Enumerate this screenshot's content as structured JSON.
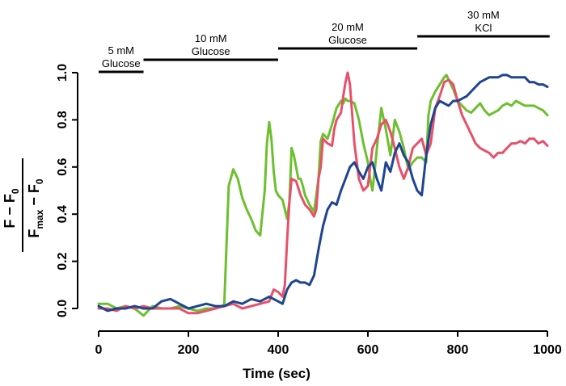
{
  "chart_data": {
    "type": "line",
    "xlabel": "Time (sec)",
    "ylabel": {
      "numerator": "F − F",
      "numerator_sub": "0",
      "denominator": "F",
      "denominator_sub": "max",
      "denominator_rest": " − F",
      "denominator_sub2": "0"
    },
    "xlim": [
      0,
      1000
    ],
    "ylim": [
      0,
      1.0
    ],
    "x_ticks": [
      "0",
      "200",
      "400",
      "600",
      "800",
      "1000"
    ],
    "y_ticks": [
      "0.0",
      "0.2",
      "0.4",
      "0.6",
      "0.8",
      "1.0"
    ],
    "grid": false,
    "conditions": [
      {
        "label_lines": [
          "5 mM",
          "Glucose"
        ],
        "start": 0,
        "end": 100
      },
      {
        "label_lines": [
          "10 mM",
          "Glucose"
        ],
        "start": 100,
        "end": 400
      },
      {
        "label_lines": [
          "20 mM",
          "Glucose"
        ],
        "start": 400,
        "end": 710
      },
      {
        "label_lines": [
          "30 mM",
          "KCl"
        ],
        "start": 710,
        "end": 1005
      }
    ],
    "series": [
      {
        "name": "green",
        "color": "#6cc02e",
        "x": [
          0,
          20,
          40,
          60,
          80,
          100,
          120,
          140,
          160,
          180,
          200,
          220,
          240,
          260,
          275,
          280,
          290,
          300,
          310,
          320,
          330,
          340,
          350,
          360,
          370,
          375,
          380,
          385,
          390,
          395,
          400,
          410,
          420,
          425,
          430,
          435,
          440,
          445,
          450,
          455,
          460,
          470,
          480,
          490,
          495,
          500,
          510,
          520,
          530,
          540,
          545,
          550,
          555,
          560,
          570,
          580,
          590,
          600,
          605,
          610,
          615,
          620,
          630,
          640,
          650,
          655,
          660,
          670,
          680,
          690,
          700,
          710,
          720,
          730,
          735,
          740,
          750,
          760,
          770,
          775,
          780,
          790,
          800,
          810,
          820,
          830,
          840,
          850,
          860,
          870,
          880,
          890,
          900,
          910,
          920,
          930,
          940,
          950,
          960,
          970,
          980,
          990,
          1000
        ],
        "y": [
          0.02,
          0.02,
          0.0,
          0.01,
          0.0,
          -0.03,
          0.01,
          0.0,
          0.0,
          0.01,
          0.0,
          -0.01,
          0.0,
          0.0,
          0.01,
          0.02,
          0.52,
          0.59,
          0.55,
          0.47,
          0.42,
          0.38,
          0.33,
          0.31,
          0.5,
          0.7,
          0.79,
          0.72,
          0.58,
          0.5,
          0.48,
          0.46,
          0.38,
          0.45,
          0.68,
          0.65,
          0.6,
          0.55,
          0.55,
          0.52,
          0.48,
          0.44,
          0.41,
          0.55,
          0.71,
          0.74,
          0.72,
          0.78,
          0.85,
          0.88,
          0.87,
          0.89,
          0.88,
          0.88,
          0.87,
          0.8,
          0.7,
          0.62,
          0.55,
          0.5,
          0.58,
          0.68,
          0.85,
          0.76,
          0.65,
          0.72,
          0.8,
          0.75,
          0.68,
          0.59,
          0.62,
          0.64,
          0.64,
          0.62,
          0.82,
          0.88,
          0.92,
          0.95,
          0.98,
          0.99,
          0.97,
          0.93,
          0.88,
          0.86,
          0.84,
          0.83,
          0.85,
          0.87,
          0.84,
          0.82,
          0.83,
          0.84,
          0.86,
          0.87,
          0.86,
          0.88,
          0.87,
          0.86,
          0.86,
          0.86,
          0.85,
          0.84,
          0.82
        ]
      },
      {
        "name": "pink",
        "color": "#e8506a",
        "x": [
          0,
          20,
          40,
          60,
          80,
          100,
          120,
          140,
          160,
          180,
          200,
          220,
          240,
          260,
          280,
          300,
          320,
          340,
          360,
          380,
          390,
          400,
          410,
          415,
          420,
          425,
          430,
          440,
          450,
          460,
          470,
          480,
          485,
          490,
          495,
          500,
          510,
          520,
          525,
          530,
          540,
          545,
          550,
          555,
          560,
          570,
          580,
          590,
          600,
          610,
          620,
          630,
          640,
          650,
          660,
          670,
          680,
          690,
          700,
          710,
          720,
          730,
          740,
          750,
          760,
          770,
          780,
          790,
          800,
          810,
          820,
          830,
          840,
          850,
          860,
          870,
          880,
          890,
          900,
          910,
          920,
          930,
          940,
          950,
          960,
          970,
          980,
          990,
          1000
        ],
        "y": [
          0.0,
          0.0,
          -0.01,
          0.01,
          0.0,
          0.01,
          0.0,
          0.0,
          0.0,
          0.0,
          -0.02,
          -0.02,
          -0.01,
          0.0,
          0.01,
          0.02,
          0.0,
          0.01,
          0.02,
          0.03,
          0.08,
          0.07,
          0.05,
          0.1,
          0.29,
          0.45,
          0.55,
          0.54,
          0.48,
          0.44,
          0.42,
          0.39,
          0.42,
          0.55,
          0.6,
          0.72,
          0.7,
          0.69,
          0.76,
          0.8,
          0.83,
          0.9,
          0.96,
          1.0,
          0.95,
          0.7,
          0.55,
          0.5,
          0.52,
          0.68,
          0.72,
          0.78,
          0.8,
          0.75,
          0.68,
          0.6,
          0.55,
          0.6,
          0.68,
          0.7,
          0.72,
          0.65,
          0.7,
          0.85,
          0.9,
          0.96,
          0.97,
          0.95,
          0.88,
          0.82,
          0.78,
          0.74,
          0.7,
          0.68,
          0.67,
          0.66,
          0.64,
          0.66,
          0.66,
          0.68,
          0.7,
          0.7,
          0.71,
          0.7,
          0.72,
          0.72,
          0.7,
          0.71,
          0.69
        ]
      },
      {
        "name": "blue",
        "color": "#1f4591",
        "x": [
          0,
          20,
          40,
          60,
          80,
          100,
          120,
          140,
          160,
          180,
          200,
          220,
          240,
          260,
          280,
          300,
          320,
          340,
          360,
          380,
          400,
          410,
          420,
          430,
          440,
          450,
          460,
          470,
          480,
          490,
          500,
          510,
          520,
          530,
          540,
          550,
          560,
          570,
          580,
          590,
          600,
          610,
          620,
          630,
          640,
          650,
          660,
          670,
          680,
          690,
          700,
          710,
          720,
          730,
          740,
          750,
          760,
          770,
          780,
          790,
          800,
          810,
          820,
          830,
          840,
          850,
          860,
          870,
          880,
          890,
          900,
          910,
          920,
          930,
          940,
          950,
          960,
          970,
          980,
          990,
          1000
        ],
        "y": [
          0.01,
          -0.01,
          0.0,
          0.0,
          0.01,
          0.0,
          0.0,
          0.03,
          0.04,
          0.02,
          0.0,
          0.01,
          0.02,
          0.01,
          0.01,
          0.03,
          0.02,
          0.04,
          0.03,
          0.05,
          0.03,
          0.02,
          0.08,
          0.11,
          0.12,
          0.11,
          0.11,
          0.1,
          0.14,
          0.25,
          0.35,
          0.42,
          0.45,
          0.44,
          0.5,
          0.55,
          0.6,
          0.62,
          0.58,
          0.55,
          0.6,
          0.62,
          0.55,
          0.5,
          0.62,
          0.58,
          0.66,
          0.7,
          0.65,
          0.62,
          0.55,
          0.5,
          0.48,
          0.65,
          0.78,
          0.85,
          0.88,
          0.87,
          0.86,
          0.88,
          0.88,
          0.89,
          0.9,
          0.92,
          0.94,
          0.96,
          0.97,
          0.98,
          0.98,
          0.98,
          0.99,
          0.99,
          0.98,
          0.98,
          0.98,
          0.98,
          0.96,
          0.96,
          0.95,
          0.95,
          0.94
        ]
      }
    ]
  }
}
